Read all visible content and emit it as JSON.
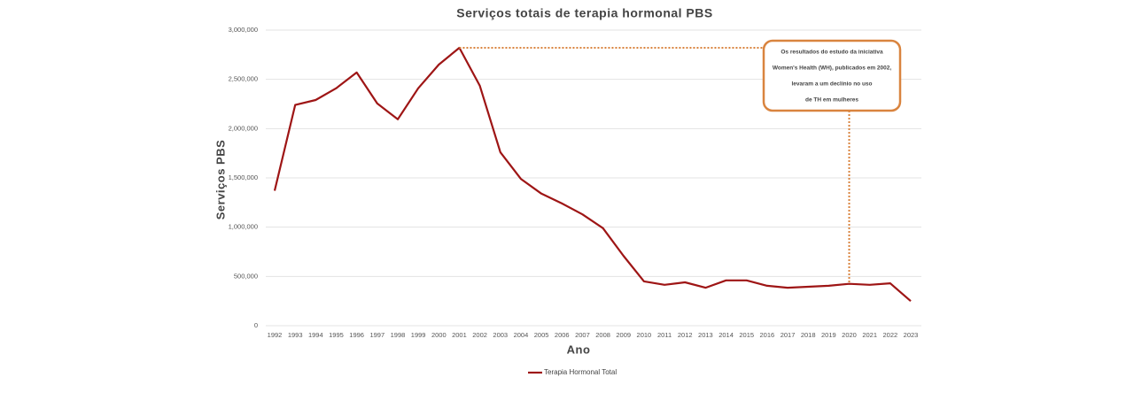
{
  "chart_data": {
    "type": "line",
    "title": "Serviços totais de terapia hormonal PBS",
    "x_label": "Ano",
    "y_label": "Serviços PBS",
    "categories": [
      "1992",
      "1993",
      "1994",
      "1995",
      "1996",
      "1997",
      "1998",
      "1999",
      "2000",
      "2001",
      "2002",
      "2003",
      "2004",
      "2005",
      "2006",
      "2007",
      "2008",
      "2009",
      "2010",
      "2011",
      "2012",
      "2013",
      "2014",
      "2015",
      "2016",
      "2017",
      "2018",
      "2019",
      "2020",
      "2021",
      "2022",
      "2023"
    ],
    "series": [
      {
        "name": "Terapia Hormonal Total",
        "color": "#9e1515",
        "values": [
          1370000,
          2240000,
          2290000,
          2410000,
          2570000,
          2255000,
          2095000,
          2410000,
          2650000,
          2820000,
          2435000,
          1760000,
          1490000,
          1340000,
          1240000,
          1130000,
          990000,
          710000,
          450000,
          415000,
          440000,
          385000,
          460000,
          460000,
          405000,
          385000,
          395000,
          405000,
          425000,
          415000,
          430000,
          250000
        ]
      }
    ],
    "ylim": [
      0,
      3000000
    ],
    "yticks": [
      0,
      {
        "value": 500000,
        "label": "500,000"
      },
      {
        "value": 1000000,
        "label": "1,000,000"
      },
      {
        "value": 1500000,
        "label": "1,500,000"
      },
      {
        "value": 2000000,
        "label": "2,000,000"
      },
      {
        "value": 2500000,
        "label": "2,500,000"
      },
      {
        "value": 3000000,
        "label": "3,000,000"
      }
    ],
    "grid": true,
    "legend": "bottom",
    "annotation": {
      "lines": [
        "Os resultados do estudo da iniciativa",
        "Women's Health (WH), publicados em 2002,",
        "levaram a um declínio no uso",
        "de TH em mulheres"
      ],
      "color": "#d9843f",
      "from_category": 9,
      "to_category": 28
    }
  }
}
